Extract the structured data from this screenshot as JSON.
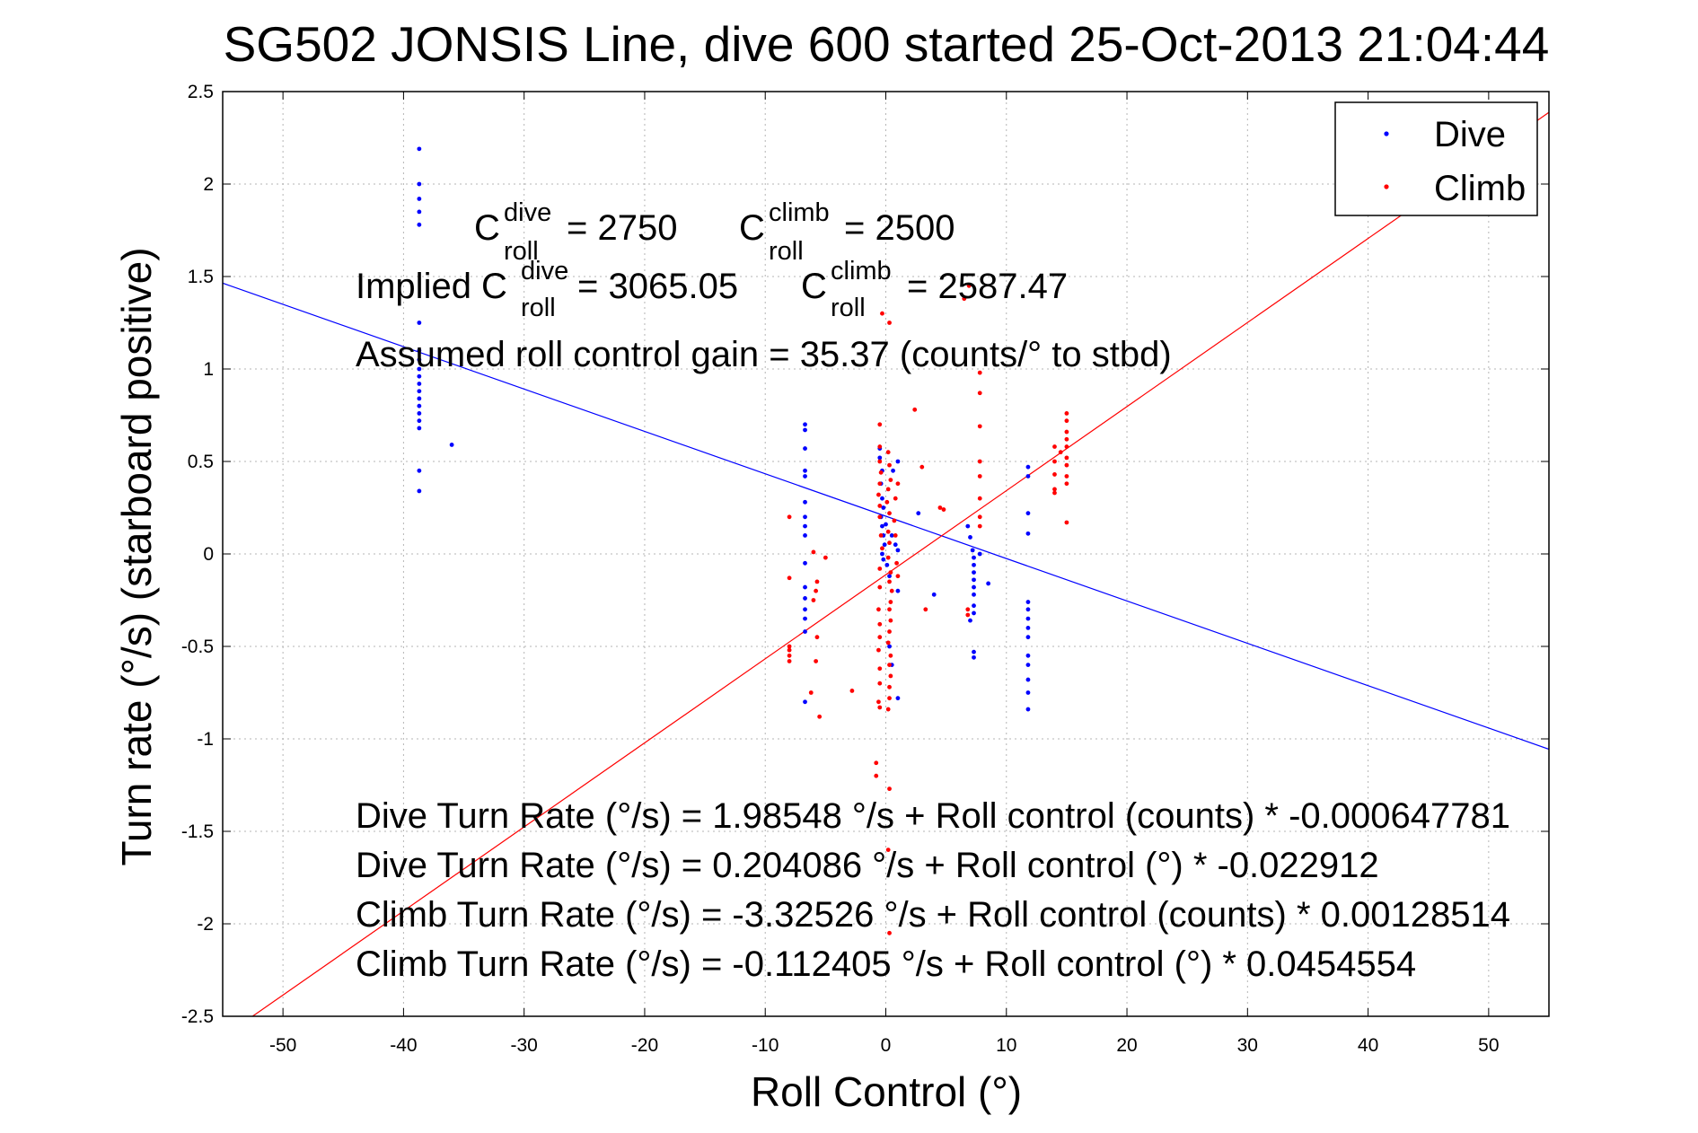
{
  "chart_data": {
    "type": "scatter",
    "title": "SG502 JONSIS Line, dive 600 started 25-Oct-2013 21:04:44",
    "xlabel": "Roll Control (°)",
    "ylabel": "Turn rate (°/s)  (starboard positive)",
    "xlim": [
      -55,
      55
    ],
    "ylim": [
      -2.5,
      2.5
    ],
    "xticks": [
      -50,
      -40,
      -30,
      -20,
      -10,
      0,
      10,
      20,
      30,
      40,
      50
    ],
    "yticks": [
      -2.5,
      -2,
      -1.5,
      -1,
      -0.5,
      0,
      0.5,
      1,
      1.5,
      2,
      2.5
    ],
    "xtick_labels": [
      "-50",
      "-40",
      "-30",
      "-20",
      "-10",
      "0",
      "10",
      "20",
      "30",
      "40",
      "50"
    ],
    "ytick_labels": [
      "-2.5",
      "-2",
      "-1.5",
      "-1",
      "-0.5",
      "0",
      "0.5",
      "1",
      "1.5",
      "2",
      "2.5"
    ],
    "grid": true,
    "legend_position": "top-right",
    "series": [
      {
        "name": "Dive",
        "color": "#0000ff",
        "points": [
          [
            -38.7,
            2.19
          ],
          [
            -38.7,
            2.0
          ],
          [
            -38.7,
            1.92
          ],
          [
            -38.7,
            1.85
          ],
          [
            -38.7,
            1.78
          ],
          [
            -38.7,
            1.25
          ],
          [
            -38.7,
            1.1
          ],
          [
            -38.7,
            1.05
          ],
          [
            -38.7,
            1.0
          ],
          [
            -38.7,
            0.96
          ],
          [
            -38.7,
            0.92
          ],
          [
            -38.7,
            0.88
          ],
          [
            -38.7,
            0.84
          ],
          [
            -38.7,
            0.8
          ],
          [
            -38.7,
            0.76
          ],
          [
            -38.7,
            0.72
          ],
          [
            -38.7,
            0.68
          ],
          [
            -38.7,
            0.45
          ],
          [
            -38.7,
            0.34
          ],
          [
            -36.0,
            0.59
          ],
          [
            -6.7,
            0.7
          ],
          [
            -6.7,
            0.67
          ],
          [
            -6.7,
            0.57
          ],
          [
            -6.7,
            0.45
          ],
          [
            -6.7,
            0.42
          ],
          [
            -6.7,
            0.28
          ],
          [
            -6.7,
            0.2
          ],
          [
            -6.7,
            0.15
          ],
          [
            -6.7,
            0.1
          ],
          [
            -6.7,
            -0.05
          ],
          [
            -6.7,
            -0.18
          ],
          [
            -6.7,
            -0.24
          ],
          [
            -6.7,
            -0.3
          ],
          [
            -6.7,
            -0.35
          ],
          [
            -6.7,
            -0.42
          ],
          [
            -6.7,
            -0.8
          ],
          [
            -0.5,
            0.57
          ],
          [
            -0.5,
            0.52
          ],
          [
            -0.3,
            0.45
          ],
          [
            -0.4,
            0.38
          ],
          [
            -0.3,
            0.3
          ],
          [
            -0.2,
            0.25
          ],
          [
            -0.4,
            0.2
          ],
          [
            -0.3,
            0.15
          ],
          [
            -0.2,
            0.1
          ],
          [
            -0.1,
            0.05
          ],
          [
            -0.3,
            0.0
          ],
          [
            -0.2,
            -0.03
          ],
          [
            0.1,
            -0.06
          ],
          [
            0.3,
            -0.12
          ],
          [
            0.0,
            0.16
          ],
          [
            0.5,
            0.1
          ],
          [
            0.8,
            0.05
          ],
          [
            1.0,
            0.02
          ],
          [
            1.0,
            -0.2
          ],
          [
            1.0,
            0.5
          ],
          [
            0.6,
            0.45
          ],
          [
            0.3,
            -0.5
          ],
          [
            0.5,
            -0.6
          ],
          [
            1.0,
            -0.78
          ],
          [
            2.7,
            0.22
          ],
          [
            4.0,
            -0.22
          ],
          [
            7.0,
            0.09
          ],
          [
            7.2,
            0.02
          ],
          [
            7.3,
            -0.02
          ],
          [
            7.3,
            -0.06
          ],
          [
            7.3,
            -0.1
          ],
          [
            7.3,
            -0.14
          ],
          [
            7.3,
            -0.18
          ],
          [
            7.3,
            -0.22
          ],
          [
            7.3,
            -0.28
          ],
          [
            7.3,
            -0.32
          ],
          [
            7.0,
            -0.36
          ],
          [
            7.3,
            -0.53
          ],
          [
            7.3,
            -0.56
          ],
          [
            6.8,
            0.15
          ],
          [
            7.8,
            0.0
          ],
          [
            8.5,
            -0.16
          ],
          [
            11.8,
            0.47
          ],
          [
            11.8,
            0.42
          ],
          [
            11.8,
            0.22
          ],
          [
            11.8,
            0.11
          ],
          [
            11.8,
            -0.26
          ],
          [
            11.8,
            -0.3
          ],
          [
            11.8,
            -0.35
          ],
          [
            11.8,
            -0.4
          ],
          [
            11.8,
            -0.45
          ],
          [
            11.8,
            -0.55
          ],
          [
            11.8,
            -0.6
          ],
          [
            11.8,
            -0.68
          ],
          [
            11.8,
            -0.75
          ],
          [
            11.8,
            -0.84
          ]
        ]
      },
      {
        "name": "Climb",
        "color": "#ff0000",
        "points": [
          [
            -8.0,
            0.2
          ],
          [
            -8.0,
            -0.13
          ],
          [
            -8.0,
            -0.5
          ],
          [
            -8.0,
            -0.52
          ],
          [
            -8.0,
            -0.55
          ],
          [
            -8.0,
            -0.58
          ],
          [
            -6.0,
            -0.25
          ],
          [
            -5.8,
            -0.2
          ],
          [
            -5.7,
            -0.15
          ],
          [
            -5.7,
            -0.45
          ],
          [
            -5.8,
            -0.58
          ],
          [
            -5.5,
            -0.88
          ],
          [
            -6.0,
            0.01
          ],
          [
            -5.0,
            -0.02
          ],
          [
            -6.2,
            -0.75
          ],
          [
            -2.8,
            -0.74
          ],
          [
            -0.5,
            0.7
          ],
          [
            -0.5,
            0.58
          ],
          [
            -0.5,
            0.5
          ],
          [
            -0.4,
            0.44
          ],
          [
            -0.5,
            0.38
          ],
          [
            -0.6,
            0.32
          ],
          [
            -0.5,
            0.26
          ],
          [
            -0.5,
            0.2
          ],
          [
            -0.4,
            0.1
          ],
          [
            -0.3,
            0.03
          ],
          [
            -0.5,
            -0.08
          ],
          [
            -0.5,
            -0.18
          ],
          [
            -0.6,
            -0.3
          ],
          [
            -0.5,
            -0.38
          ],
          [
            -0.5,
            -0.45
          ],
          [
            -0.6,
            -0.52
          ],
          [
            -0.5,
            -0.62
          ],
          [
            -0.5,
            -0.7
          ],
          [
            -0.6,
            -0.8
          ],
          [
            -0.5,
            -0.83
          ],
          [
            -0.8,
            -1.13
          ],
          [
            -0.8,
            -1.2
          ],
          [
            -0.3,
            1.3
          ],
          [
            0.2,
            0.55
          ],
          [
            0.3,
            0.48
          ],
          [
            0.4,
            0.4
          ],
          [
            0.2,
            0.35
          ],
          [
            0.1,
            0.28
          ],
          [
            0.3,
            0.22
          ],
          [
            0.2,
            0.12
          ],
          [
            0.3,
            0.06
          ],
          [
            0.2,
            -0.02
          ],
          [
            0.4,
            -0.1
          ],
          [
            0.3,
            -0.15
          ],
          [
            0.5,
            -0.2
          ],
          [
            0.4,
            -0.26
          ],
          [
            0.3,
            -0.3
          ],
          [
            0.4,
            -0.36
          ],
          [
            0.3,
            -0.42
          ],
          [
            0.2,
            -0.48
          ],
          [
            0.4,
            -0.55
          ],
          [
            0.3,
            -0.6
          ],
          [
            0.4,
            -0.66
          ],
          [
            0.3,
            -0.72
          ],
          [
            0.3,
            -0.78
          ],
          [
            0.2,
            -0.84
          ],
          [
            0.3,
            -1.27
          ],
          [
            0.2,
            -1.6
          ],
          [
            0.3,
            -2.05
          ],
          [
            0.3,
            1.25
          ],
          [
            0.7,
            0.18
          ],
          [
            0.8,
            0.1
          ],
          [
            0.9,
            -0.05
          ],
          [
            1.0,
            -0.12
          ],
          [
            0.8,
            0.3
          ],
          [
            1.0,
            0.38
          ],
          [
            2.4,
            0.78
          ],
          [
            3.0,
            0.47
          ],
          [
            3.3,
            -0.3
          ],
          [
            4.5,
            0.25
          ],
          [
            4.8,
            0.24
          ],
          [
            6.5,
            1.38
          ],
          [
            6.9,
            1.45
          ],
          [
            7.8,
            0.98
          ],
          [
            7.8,
            0.87
          ],
          [
            7.8,
            0.69
          ],
          [
            7.8,
            0.42
          ],
          [
            7.8,
            0.5
          ],
          [
            7.8,
            0.3
          ],
          [
            7.8,
            0.2
          ],
          [
            7.8,
            0.15
          ],
          [
            6.8,
            -0.3
          ],
          [
            6.8,
            -0.33
          ],
          [
            14.0,
            0.58
          ],
          [
            14.0,
            0.5
          ],
          [
            14.0,
            0.43
          ],
          [
            14.0,
            0.35
          ],
          [
            14.0,
            0.33
          ],
          [
            14.5,
            0.55
          ],
          [
            15.0,
            0.76
          ],
          [
            15.0,
            0.72
          ],
          [
            15.0,
            0.66
          ],
          [
            15.0,
            0.62
          ],
          [
            15.0,
            0.58
          ],
          [
            15.0,
            0.52
          ],
          [
            15.0,
            0.48
          ],
          [
            15.0,
            0.42
          ],
          [
            15.0,
            0.38
          ],
          [
            15.0,
            0.17
          ]
        ]
      }
    ],
    "fit_lines": [
      {
        "name": "Dive fit",
        "color": "#0000ff",
        "intercept": 0.204086,
        "slope": -0.022912
      },
      {
        "name": "Climb fit",
        "color": "#ff0000",
        "intercept": -0.112405,
        "slope": 0.0454554
      }
    ]
  },
  "annotations": {
    "c_roll_dive": {
      "base": "C",
      "sup": "dive",
      "sub": "roll",
      "value": "= 2750"
    },
    "c_roll_climb": {
      "base": "C",
      "sup": "climb",
      "sub": "roll",
      "value": "= 2500"
    },
    "implied_dive": {
      "prefix": "Implied C",
      "sup": "dive",
      "sub": "roll",
      "value": "= 3065.05"
    },
    "implied_climb": {
      "base": "C",
      "sup": "climb",
      "sub": "roll",
      "value": "= 2587.47"
    },
    "gain": "Assumed roll control gain = 35.37 (counts/° to stbd)",
    "eq1": "Dive Turn Rate (°/s) = 1.98548 °/s + Roll control (counts) * -0.000647781",
    "eq2": "Dive Turn Rate (°/s) = 0.204086 °/s + Roll control (°) * -0.022912",
    "eq3": "Climb Turn Rate (°/s) = -3.32526 °/s + Roll control (counts) * 0.00128514",
    "eq4": "Climb Turn Rate (°/s) = -0.112405 °/s + Roll control (°) * 0.0454554"
  }
}
